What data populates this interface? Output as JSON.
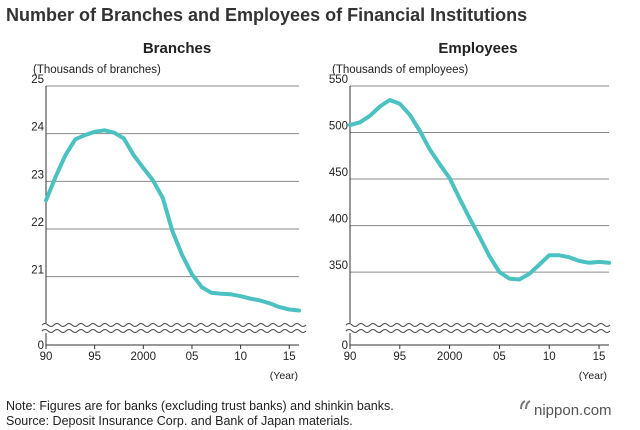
{
  "title": "Number of Branches and Employees of Financial Institutions",
  "colors": {
    "series": "#4cc1c2",
    "grid": "#8a8a8a",
    "text": "#222222"
  },
  "chart_data": [
    {
      "type": "line",
      "title": "Branches",
      "ylabel": "(Thousands of branches)",
      "xlabel": "(Year)",
      "y_axis_break": true,
      "break_baseline": "0",
      "ylim": [
        20.3,
        25
      ],
      "yticks": [
        21,
        22,
        23,
        24,
        25
      ],
      "xlim": [
        1990,
        2016
      ],
      "xticks": [
        1990,
        1995,
        2000,
        2005,
        2010,
        2015
      ],
      "xtick_labels": [
        "90",
        "95",
        "2000",
        "05",
        "10",
        "15"
      ],
      "grid": true,
      "series": [
        {
          "x": [
            1990,
            1991,
            1992,
            1993,
            1994,
            1995,
            1996,
            1997,
            1998,
            1999,
            2000,
            2001,
            2002,
            2003,
            2004,
            2005,
            2006,
            2007,
            2008,
            2009,
            2010,
            2011,
            2012,
            2013,
            2014,
            2015,
            2016
          ],
          "values": [
            22.6,
            23.1,
            23.55,
            23.88,
            23.97,
            24.04,
            24.07,
            24.02,
            23.9,
            23.55,
            23.28,
            23.02,
            22.65,
            21.95,
            21.45,
            21.05,
            20.78,
            20.66,
            20.64,
            20.63,
            20.59,
            20.54,
            20.5,
            20.44,
            20.36,
            20.31,
            20.29
          ]
        }
      ]
    },
    {
      "type": "line",
      "title": "Employees",
      "ylabel": "(Thousands of employees)",
      "xlabel": "(Year)",
      "y_axis_break": true,
      "break_baseline": "0",
      "ylim": [
        320,
        550
      ],
      "yticks": [
        350,
        400,
        450,
        500,
        550
      ],
      "xlim": [
        1990,
        2016
      ],
      "xticks": [
        1990,
        1995,
        2000,
        2005,
        2010,
        2015
      ],
      "xtick_labels": [
        "90",
        "95",
        "2000",
        "05",
        "10",
        "15"
      ],
      "grid": true,
      "series": [
        {
          "x": [
            1990,
            1991,
            1992,
            1993,
            1994,
            1995,
            1996,
            1997,
            1998,
            1999,
            2000,
            2001,
            2002,
            2003,
            2004,
            2005,
            2006,
            2007,
            2008,
            2009,
            2010,
            2011,
            2012,
            2013,
            2014,
            2015,
            2016
          ],
          "values": [
            508,
            511,
            518,
            528,
            535,
            531,
            519,
            502,
            482,
            466,
            451,
            429,
            408,
            388,
            367,
            350,
            343,
            342,
            348,
            358,
            368,
            368,
            366,
            362,
            360,
            361,
            360
          ]
        }
      ]
    }
  ],
  "note": "Note: Figures are for banks (excluding trust banks) and shinkin banks.",
  "source": "Source: Deposit Insurance Corp. and Bank of Japan materials.",
  "brand": "nippon.com"
}
